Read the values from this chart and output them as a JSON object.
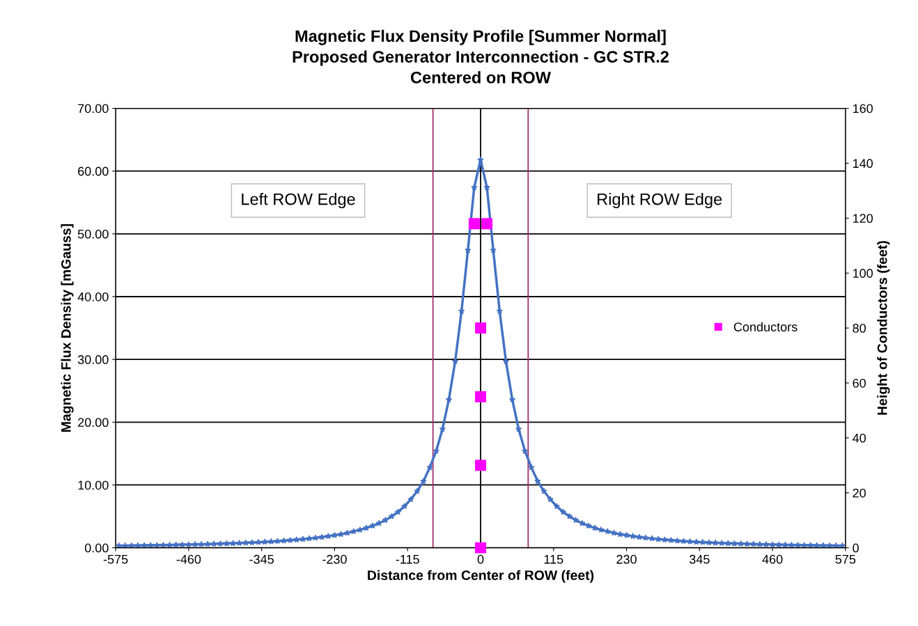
{
  "chart_data": {
    "type": "line",
    "title": "Magnetic Flux Density Profile [Summer Normal]\nProposed Generator Interconnection - GC STR.2\nCentered on ROW",
    "xlabel": "Distance from Center of ROW (feet)",
    "ylabel": "Magnetic Flux Density [mGauss]",
    "y2label": "Height of Conductors (feet)",
    "annotations": [
      "Left ROW Edge",
      "Right ROW Edge"
    ],
    "x": [
      -570,
      -560,
      -550,
      -540,
      -530,
      -520,
      -510,
      -500,
      -490,
      -480,
      -470,
      -460,
      -450,
      -440,
      -430,
      -420,
      -410,
      -400,
      -390,
      -380,
      -370,
      -360,
      -350,
      -340,
      -330,
      -320,
      -310,
      -300,
      -290,
      -280,
      -270,
      -260,
      -250,
      -240,
      -230,
      -220,
      -210,
      -200,
      -190,
      -180,
      -170,
      -160,
      -150,
      -140,
      -130,
      -120,
      -110,
      -100,
      -90,
      -80,
      -70,
      -60,
      -50,
      -40,
      -30,
      -20,
      -10,
      0,
      10,
      20,
      30,
      40,
      50,
      60,
      70,
      80,
      90,
      100,
      110,
      120,
      130,
      140,
      150,
      160,
      170,
      180,
      190,
      200,
      210,
      220,
      230,
      240,
      250,
      260,
      270,
      280,
      290,
      300,
      310,
      320,
      330,
      340,
      350,
      360,
      370,
      380,
      390,
      400,
      410,
      420,
      430,
      440,
      450,
      460,
      470,
      480,
      490,
      500,
      510,
      520,
      530,
      540,
      550,
      560,
      570
    ],
    "series": [
      {
        "color": "#4472c4",
        "marker": "star",
        "values": [
          0.32,
          0.33,
          0.34,
          0.36,
          0.37,
          0.39,
          0.4,
          0.42,
          0.44,
          0.46,
          0.48,
          0.5,
          0.53,
          0.55,
          0.58,
          0.61,
          0.64,
          0.67,
          0.71,
          0.75,
          0.79,
          0.83,
          0.88,
          0.93,
          0.99,
          1.05,
          1.12,
          1.2,
          1.28,
          1.37,
          1.47,
          1.58,
          1.7,
          1.85,
          2.0,
          2.15,
          2.35,
          2.6,
          2.85,
          3.15,
          3.5,
          3.9,
          4.4,
          5.0,
          5.7,
          6.6,
          7.7,
          9.0,
          10.6,
          12.8,
          15.4,
          18.9,
          23.6,
          29.7,
          37.7,
          47.4,
          57.4,
          61.8,
          57.4,
          47.4,
          37.7,
          29.7,
          23.6,
          18.9,
          15.4,
          12.8,
          10.6,
          9.0,
          7.7,
          6.6,
          5.7,
          5.0,
          4.4,
          3.9,
          3.5,
          3.15,
          2.85,
          2.6,
          2.35,
          2.15,
          2.0,
          1.85,
          1.7,
          1.58,
          1.47,
          1.37,
          1.28,
          1.2,
          1.12,
          1.05,
          0.99,
          0.93,
          0.88,
          0.83,
          0.79,
          0.75,
          0.71,
          0.67,
          0.64,
          0.61,
          0.58,
          0.55,
          0.53,
          0.5,
          0.48,
          0.46,
          0.44,
          0.42,
          0.4,
          0.39,
          0.37,
          0.36,
          0.34,
          0.33,
          0.32
        ]
      },
      {
        "name": "Conductors",
        "type": "scatter",
        "axis": "y2",
        "color": "#ff00ff",
        "marker": "square",
        "x": [
          -10,
          10,
          0,
          0,
          0,
          0
        ],
        "values": [
          118,
          118,
          80,
          55,
          30,
          0
        ]
      }
    ],
    "xlim": [
      -575,
      575
    ],
    "xticks": [
      -575,
      -460,
      -345,
      -230,
      -115,
      0,
      115,
      230,
      345,
      460,
      575
    ],
    "ylim": [
      0,
      70
    ],
    "yticks": [
      {
        "value": 0,
        "label": "0.00"
      },
      {
        "value": 10,
        "label": "10.00"
      },
      {
        "value": 20,
        "label": "20.00"
      },
      {
        "value": 30,
        "label": "30.00"
      },
      {
        "value": 40,
        "label": "40.00"
      },
      {
        "value": 50,
        "label": "50.00"
      },
      {
        "value": 60,
        "label": "60.00"
      },
      {
        "value": 70,
        "label": "70.00"
      }
    ],
    "y2lim": [
      0,
      160
    ],
    "y2ticks": [
      0,
      20,
      40,
      60,
      80,
      100,
      120,
      140,
      160
    ],
    "ref_lines": [
      {
        "axis": "x",
        "value": -75,
        "color": "#a0306a"
      },
      {
        "axis": "x",
        "value": 75,
        "color": "#a0306a"
      },
      {
        "axis": "x",
        "value": 0,
        "color": "#000000"
      }
    ],
    "grid": "y",
    "legend": "right"
  }
}
